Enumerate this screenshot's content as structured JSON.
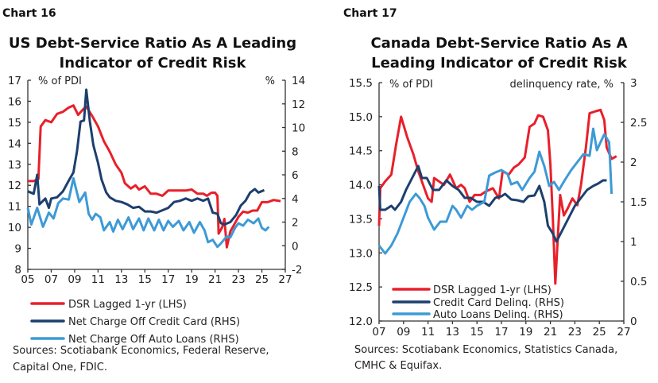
{
  "colors": {
    "dsr": "#e8202a",
    "credit": "#1d3f6e",
    "auto": "#3d9ad6"
  },
  "chart_data": [
    {
      "type": "line",
      "label": "Chart 16",
      "title": [
        "US Debt-Service Ratio As A Leading",
        "Indicator of Credit Risk"
      ],
      "ylabel_left": "% of PDI",
      "ylabel_right": "%",
      "xlim": [
        2005,
        2027
      ],
      "ylim_left": [
        8,
        17
      ],
      "ylim_right": [
        -2,
        14
      ],
      "xticks": [
        "05",
        "07",
        "09",
        "11",
        "13",
        "15",
        "17",
        "19",
        "21",
        "23",
        "25",
        "27"
      ],
      "yticks_left": [
        "8",
        "9",
        "10",
        "11",
        "12",
        "13",
        "14",
        "15",
        "16",
        "17"
      ],
      "yticks_right": [
        "-2",
        "0",
        "2",
        "4",
        "6",
        "8",
        "10",
        "12",
        "14"
      ],
      "legend_placement": "bottom-below",
      "grid": false,
      "series": [
        {
          "name": "DSR Lagged 1-yr (LHS)",
          "axis": "left",
          "color_key": "dsr",
          "x": [
            2005.0,
            2005.5,
            2005.9,
            2006.1,
            2006.5,
            2007.0,
            2007.5,
            2008.0,
            2008.5,
            2008.9,
            2009.3,
            2009.7,
            2010.0,
            2010.5,
            2011.0,
            2011.5,
            2012.0,
            2012.5,
            2013.0,
            2013.3,
            2013.8,
            2014.2,
            2014.5,
            2015.0,
            2015.5,
            2016.0,
            2016.5,
            2017.0,
            2017.8,
            2018.5,
            2019.0,
            2019.5,
            2020.0,
            2020.3,
            2020.7,
            2021.0,
            2021.2,
            2021.3,
            2021.6,
            2021.8,
            2022.0,
            2022.3,
            2022.7,
            2023.0,
            2023.4,
            2023.8,
            2024.2,
            2024.6,
            2025.0,
            2025.5,
            2026.0,
            2026.6
          ],
          "y": [
            12.2,
            12.2,
            12.3,
            14.8,
            15.1,
            15.0,
            15.4,
            15.5,
            15.7,
            15.8,
            15.35,
            15.6,
            15.75,
            15.3,
            14.8,
            14.1,
            13.6,
            13.0,
            12.6,
            12.1,
            11.85,
            12.0,
            11.8,
            11.95,
            11.6,
            11.6,
            11.5,
            11.75,
            11.75,
            11.75,
            11.8,
            11.6,
            11.6,
            11.5,
            11.65,
            11.65,
            11.5,
            9.7,
            10.0,
            10.4,
            9.05,
            9.8,
            10.2,
            10.5,
            10.75,
            10.7,
            10.8,
            10.8,
            11.2,
            11.2,
            11.3,
            11.25
          ]
        },
        {
          "name": "Net Charge Off Credit Card (RHS)",
          "axis": "right",
          "color_key": "credit",
          "x": [
            2005.0,
            2005.5,
            2005.8,
            2006.0,
            2006.5,
            2006.8,
            2007.0,
            2007.5,
            2008.0,
            2008.5,
            2008.9,
            2009.2,
            2009.5,
            2009.8,
            2010.0,
            2010.3,
            2010.6,
            2011.0,
            2011.3,
            2011.7,
            2012.0,
            2012.5,
            2013.0,
            2013.5,
            2014.0,
            2014.5,
            2015.0,
            2015.5,
            2016.0,
            2016.5,
            2017.0,
            2017.5,
            2018.0,
            2018.5,
            2019.0,
            2019.5,
            2020.0,
            2020.4,
            2020.8,
            2021.2,
            2021.5,
            2021.8,
            2022.3,
            2022.8,
            2023.2,
            2023.6,
            2024.0,
            2024.4,
            2024.7,
            2025.2
          ],
          "y": [
            4.6,
            4.4,
            6.0,
            3.5,
            4.0,
            3.2,
            4.0,
            4.1,
            4.6,
            5.5,
            6.2,
            8.0,
            10.5,
            10.6,
            13.2,
            10.5,
            8.5,
            7.0,
            5.6,
            4.5,
            4.1,
            3.8,
            3.7,
            3.5,
            3.2,
            3.3,
            2.9,
            2.9,
            2.8,
            3.0,
            3.2,
            3.7,
            3.8,
            4.0,
            3.8,
            4.0,
            3.8,
            4.0,
            2.8,
            2.7,
            1.9,
            1.8,
            2.0,
            2.6,
            3.4,
            3.8,
            4.5,
            4.8,
            4.5,
            4.7
          ]
        },
        {
          "name": "Net Charge Off Auto Loans (RHS)",
          "axis": "right",
          "color_key": "auto",
          "x": [
            2005.0,
            2005.3,
            2005.8,
            2006.3,
            2006.8,
            2007.2,
            2007.6,
            2008.0,
            2008.5,
            2008.9,
            2009.4,
            2009.9,
            2010.2,
            2010.5,
            2010.8,
            2011.2,
            2011.5,
            2012.0,
            2012.3,
            2012.7,
            2013.1,
            2013.6,
            2014.0,
            2014.5,
            2014.9,
            2015.3,
            2015.8,
            2016.2,
            2016.6,
            2017.0,
            2017.4,
            2017.9,
            2018.3,
            2018.8,
            2019.2,
            2019.7,
            2020.1,
            2020.4,
            2020.8,
            2021.2,
            2021.5,
            2022.0,
            2022.3,
            2022.7,
            2023.0,
            2023.4,
            2023.8,
            2024.3,
            2024.7,
            2025.0,
            2025.3,
            2025.6
          ],
          "y": [
            3.2,
            1.8,
            3.2,
            1.6,
            2.8,
            2.3,
            3.6,
            4.0,
            3.9,
            5.7,
            3.7,
            4.5,
            2.7,
            2.2,
            2.7,
            2.4,
            1.3,
            2.0,
            1.2,
            2.2,
            1.4,
            2.4,
            1.4,
            2.3,
            1.3,
            2.3,
            1.3,
            2.2,
            1.3,
            2.1,
            1.6,
            2.1,
            1.3,
            2.0,
            1.1,
            2.0,
            1.3,
            0.3,
            0.5,
            -0.1,
            0.2,
            0.8,
            0.7,
            1.5,
            1.9,
            1.7,
            2.2,
            1.9,
            2.3,
            1.5,
            1.3,
            1.6
          ]
        }
      ],
      "source": [
        "Sources: Scotiabank Economics, Federal Reserve,",
        "Capital One, FDIC."
      ]
    },
    {
      "type": "line",
      "label": "Chart 17",
      "title": [
        "Canada Debt-Service Ratio As A",
        "Leading Indicator of Credit Risk"
      ],
      "ylabel_left": "% of PDI",
      "ylabel_right": "delinquency rate, %",
      "xlim": [
        2007,
        2027
      ],
      "ylim_left": [
        12.0,
        15.5
      ],
      "ylim_right": [
        0,
        3
      ],
      "xticks": [
        "07",
        "09",
        "11",
        "13",
        "15",
        "17",
        "19",
        "21",
        "23",
        "25",
        "27"
      ],
      "yticks_left": [
        "12.0",
        "12.5",
        "13.0",
        "13.5",
        "14.0",
        "14.5",
        "15.0",
        "15.5"
      ],
      "yticks_right": [
        "0",
        "0.5",
        "1",
        "1.5",
        "2",
        "2.5",
        "3"
      ],
      "legend_placement": "bottom-left",
      "grid": false,
      "series": [
        {
          "name": "DSR Lagged 1-yr (LHS)",
          "axis": "left",
          "color_key": "dsr",
          "x": [
            2007.0,
            2007.1,
            2007.5,
            2008.0,
            2008.4,
            2008.8,
            2009.3,
            2009.8,
            2010.2,
            2010.6,
            2011.0,
            2011.3,
            2011.5,
            2011.9,
            2012.3,
            2012.8,
            2013.3,
            2013.7,
            2014.0,
            2014.4,
            2014.8,
            2015.3,
            2015.7,
            2016.3,
            2016.8,
            2017.1,
            2017.6,
            2018.0,
            2018.4,
            2018.9,
            2019.3,
            2019.7,
            2020.0,
            2020.4,
            2020.8,
            2021.0,
            2021.2,
            2021.4,
            2021.6,
            2021.8,
            2022.1,
            2022.4,
            2022.8,
            2023.2,
            2023.5,
            2023.9,
            2024.2,
            2024.7,
            2025.1,
            2025.4,
            2025.6,
            2026.0,
            2026.4
          ],
          "y": [
            13.4,
            13.95,
            14.05,
            14.15,
            14.6,
            15.0,
            14.7,
            14.45,
            14.2,
            14.0,
            13.8,
            13.75,
            14.1,
            14.05,
            14.0,
            14.15,
            13.95,
            14.0,
            13.95,
            13.75,
            13.85,
            13.85,
            13.9,
            13.95,
            13.8,
            14.2,
            14.15,
            14.25,
            14.3,
            14.4,
            14.85,
            14.9,
            15.02,
            15.0,
            14.8,
            14.3,
            13.5,
            12.55,
            13.2,
            13.85,
            13.55,
            13.65,
            13.8,
            13.7,
            14.0,
            14.55,
            15.05,
            15.08,
            15.1,
            14.95,
            14.55,
            14.38,
            14.42
          ]
        },
        {
          "name": "Credit Card Delinq. (RHS)",
          "axis": "right",
          "color_key": "credit",
          "x": [
            2007.0,
            2007.1,
            2007.5,
            2008.0,
            2008.3,
            2008.8,
            2009.2,
            2009.7,
            2010.2,
            2010.5,
            2010.9,
            2011.4,
            2011.9,
            2012.5,
            2013.0,
            2013.5,
            2014.0,
            2014.5,
            2015.0,
            2015.5,
            2016.0,
            2016.5,
            2017.0,
            2017.3,
            2017.8,
            2018.3,
            2018.8,
            2019.2,
            2019.7,
            2020.1,
            2020.5,
            2020.8,
            2021.2,
            2021.5,
            2022.0,
            2022.5,
            2023.0,
            2023.5,
            2024.0,
            2024.5,
            2024.9,
            2025.3,
            2025.6
          ],
          "y": [
            1.7,
            1.4,
            1.4,
            1.45,
            1.4,
            1.5,
            1.65,
            1.8,
            1.95,
            1.8,
            1.8,
            1.65,
            1.65,
            1.77,
            1.7,
            1.65,
            1.55,
            1.55,
            1.5,
            1.5,
            1.45,
            1.55,
            1.57,
            1.6,
            1.53,
            1.52,
            1.5,
            1.57,
            1.58,
            1.7,
            1.5,
            1.2,
            1.1,
            1.0,
            1.15,
            1.3,
            1.45,
            1.55,
            1.65,
            1.7,
            1.73,
            1.77,
            1.77
          ]
        },
        {
          "name": "Auto Loans Delinq. (RHS)",
          "axis": "right",
          "color_key": "auto",
          "x": [
            2007.0,
            2007.5,
            2008.0,
            2008.5,
            2009.0,
            2009.5,
            2010.0,
            2010.3,
            2010.7,
            2011.0,
            2011.5,
            2012.0,
            2012.5,
            2013.0,
            2013.3,
            2013.7,
            2014.2,
            2014.6,
            2015.0,
            2015.6,
            2016.0,
            2016.5,
            2017.0,
            2017.5,
            2017.8,
            2018.3,
            2018.7,
            2019.3,
            2019.7,
            2020.1,
            2020.5,
            2020.9,
            2021.3,
            2021.7,
            2022.2,
            2022.7,
            2023.2,
            2023.7,
            2024.2,
            2024.5,
            2024.8,
            2025.1,
            2025.4,
            2025.8,
            2026.0
          ],
          "y": [
            0.95,
            0.85,
            0.95,
            1.1,
            1.3,
            1.5,
            1.6,
            1.55,
            1.45,
            1.3,
            1.15,
            1.25,
            1.25,
            1.45,
            1.4,
            1.3,
            1.45,
            1.4,
            1.45,
            1.5,
            1.83,
            1.87,
            1.9,
            1.85,
            1.72,
            1.75,
            1.65,
            1.8,
            1.88,
            2.13,
            1.95,
            1.7,
            1.75,
            1.65,
            1.78,
            1.9,
            2.0,
            2.1,
            2.08,
            2.42,
            2.15,
            2.25,
            2.35,
            2.25,
            1.6
          ]
        }
      ],
      "source": [
        "Sources: Scotiabank Economics, Statistics Canada,",
        "CMHC & Equifax."
      ]
    }
  ]
}
